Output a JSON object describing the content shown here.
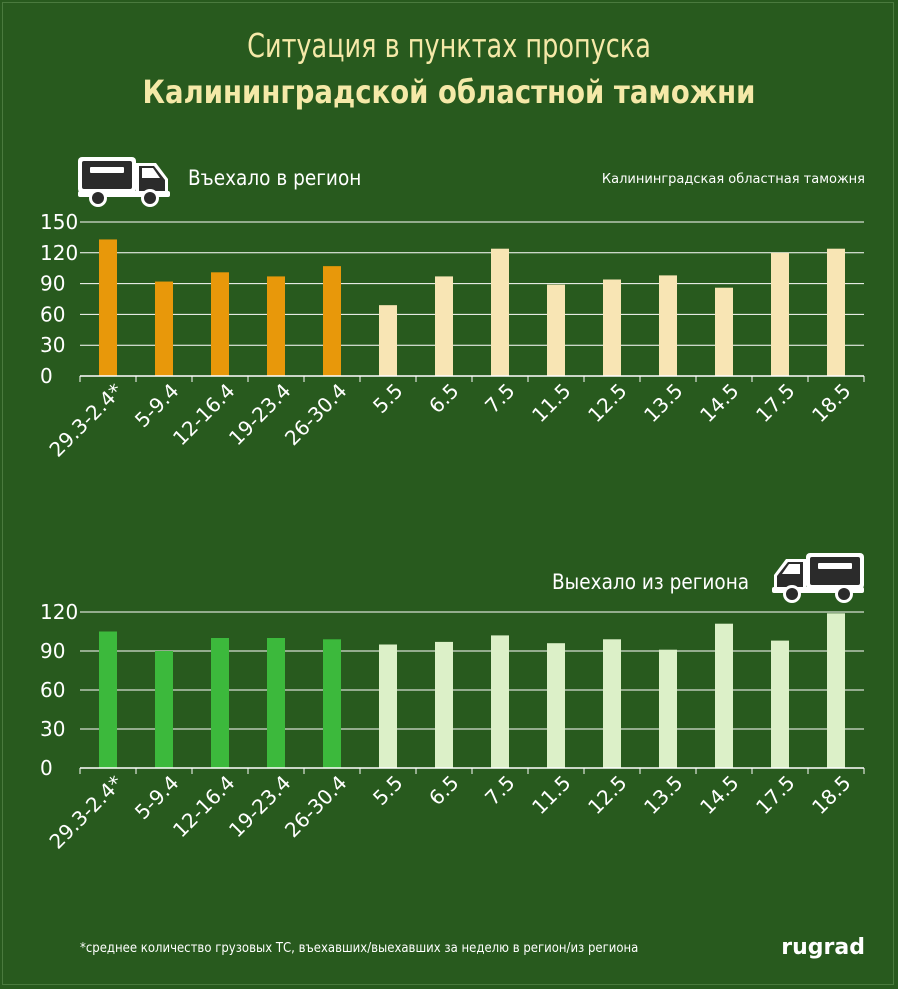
{
  "title_line1": "Ситуация в пунктах пропуска",
  "title_line2": "Калининградской областной таможни",
  "source": "Калининградская областная таможня",
  "footnote": "*среднее количество грузовых ТС, въехавших/выехавших за неделю в регион/из региона",
  "brand": "rugrad",
  "icons": {
    "top": "truck-icon",
    "bottom": "truck-icon"
  },
  "chart_data": [
    {
      "type": "bar",
      "title": "Въехало в регион",
      "categories": [
        "29.3-2.4*",
        "5-9.4",
        "12-16.4",
        "19-23.4",
        "26-30.4",
        "5.5",
        "6.5",
        "7.5",
        "11.5",
        "12.5",
        "13.5",
        "14.5",
        "17.5",
        "18.5"
      ],
      "values": [
        133,
        92,
        101,
        97,
        107,
        69,
        97,
        124,
        89,
        94,
        98,
        86,
        120,
        124
      ],
      "yticks": [
        0,
        30,
        60,
        90,
        120,
        150
      ],
      "ylim": [
        0,
        150
      ],
      "colors": [
        "#e8980a",
        "#e8980a",
        "#e8980a",
        "#e8980a",
        "#e8980a",
        "#f8e5b4",
        "#f8e5b4",
        "#f8e5b4",
        "#f8e5b4",
        "#f8e5b4",
        "#f8e5b4",
        "#f8e5b4",
        "#f8e5b4",
        "#f8e5b4"
      ],
      "grid": true
    },
    {
      "type": "bar",
      "title": "Выехало из региона",
      "categories": [
        "29.3-2.4*",
        "5-9.4",
        "12-16.4",
        "19-23.4",
        "26-30.4",
        "5.5",
        "6.5",
        "7.5",
        "11.5",
        "12.5",
        "13.5",
        "14.5",
        "17.5",
        "18.5"
      ],
      "values": [
        105,
        90,
        100,
        100,
        99,
        95,
        97,
        102,
        96,
        99,
        91,
        111,
        98,
        119
      ],
      "yticks": [
        0,
        30,
        60,
        90,
        120
      ],
      "ylim": [
        0,
        120
      ],
      "colors": [
        "#3cb93c",
        "#3cb93c",
        "#3cb93c",
        "#3cb93c",
        "#3cb93c",
        "#dcf0c8",
        "#dcf0c8",
        "#dcf0c8",
        "#dcf0c8",
        "#dcf0c8",
        "#dcf0c8",
        "#dcf0c8",
        "#dcf0c8",
        "#dcf0c8"
      ],
      "grid": true
    }
  ]
}
